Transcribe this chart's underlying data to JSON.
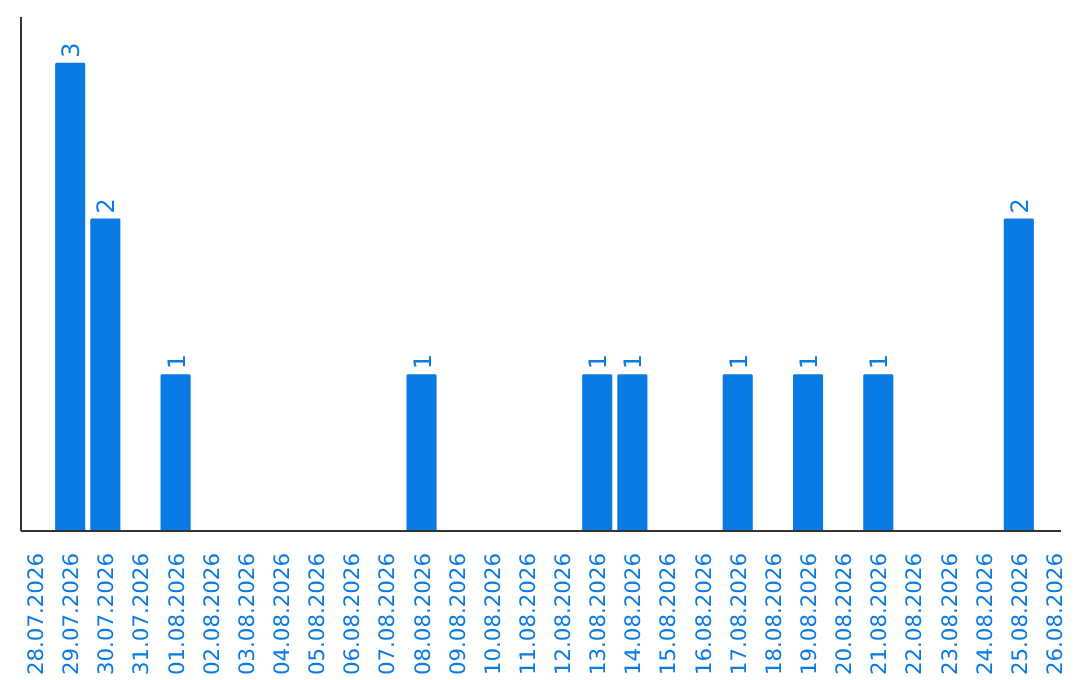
{
  "chart_data": {
    "type": "bar",
    "categories": [
      "28.07.2026",
      "29.07.2026",
      "30.07.2026",
      "31.07.2026",
      "01.08.2026",
      "02.08.2026",
      "03.08.2026",
      "04.08.2026",
      "05.08.2026",
      "06.08.2026",
      "07.08.2026",
      "08.08.2026",
      "09.08.2026",
      "10.08.2026",
      "11.08.2026",
      "12.08.2026",
      "13.08.2026",
      "14.08.2026",
      "15.08.2026",
      "16.08.2026",
      "17.08.2026",
      "18.08.2026",
      "19.08.2026",
      "20.08.2026",
      "21.08.2026",
      "22.08.2026",
      "23.08.2026",
      "24.08.2026",
      "25.08.2026",
      "26.08.2026"
    ],
    "values": [
      0,
      3,
      2,
      0,
      1,
      0,
      0,
      0,
      0,
      0,
      0,
      1,
      0,
      0,
      0,
      0,
      1,
      1,
      0,
      0,
      1,
      0,
      1,
      0,
      1,
      0,
      0,
      0,
      2,
      0
    ],
    "value_labels": [
      null,
      "3",
      "2",
      null,
      "1",
      null,
      null,
      null,
      null,
      null,
      null,
      "1",
      null,
      null,
      null,
      null,
      "1",
      "1",
      null,
      null,
      "1",
      null,
      "1",
      null,
      "1",
      null,
      null,
      null,
      "2",
      null
    ],
    "color": "#0a7be4",
    "grid": false
  }
}
